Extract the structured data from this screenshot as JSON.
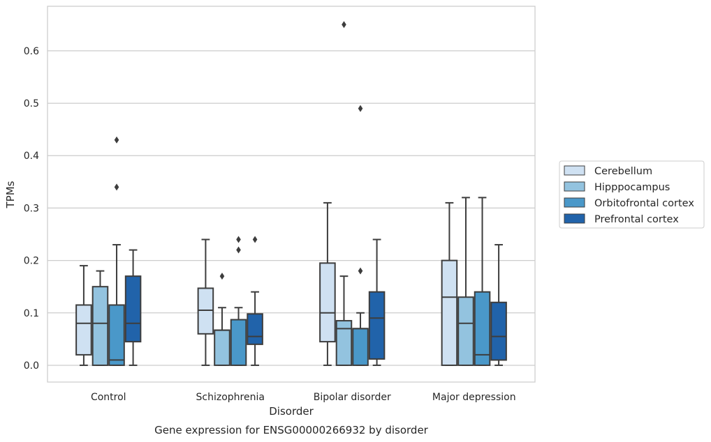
{
  "chart_data": {
    "type": "box",
    "title": "Gene expression for ENSG00000266932 by disorder",
    "xlabel": "Disorder",
    "ylabel": "TPMs",
    "ylim": [
      -0.032,
      0.685
    ],
    "yticks": [
      0.0,
      0.1,
      0.2,
      0.3,
      0.4,
      0.5,
      0.6
    ],
    "ytick_labels": [
      "0.0",
      "0.1",
      "0.2",
      "0.3",
      "0.4",
      "0.5",
      "0.6"
    ],
    "grid": "horizontal",
    "legend_position": "right",
    "categories": [
      "Control",
      "Schizophrenia",
      "Bipolar disorder",
      "Major depression"
    ],
    "series": [
      {
        "name": "Cerebellum",
        "color": "#cfe1f2",
        "boxes": [
          {
            "whislo": 0.0,
            "q1": 0.02,
            "med": 0.08,
            "q3": 0.115,
            "whishi": 0.19,
            "fliers": []
          },
          {
            "whislo": 0.0,
            "q1": 0.06,
            "med": 0.105,
            "q3": 0.147,
            "whishi": 0.24,
            "fliers": []
          },
          {
            "whislo": 0.0,
            "q1": 0.045,
            "med": 0.1,
            "q3": 0.195,
            "whishi": 0.31,
            "fliers": []
          },
          {
            "whislo": 0.0,
            "q1": 0.0,
            "med": 0.13,
            "q3": 0.2,
            "whishi": 0.31,
            "fliers": []
          }
        ]
      },
      {
        "name": "Hipppocampus",
        "color": "#93c3df",
        "boxes": [
          {
            "whislo": 0.0,
            "q1": 0.0,
            "med": 0.08,
            "q3": 0.15,
            "whishi": 0.18,
            "fliers": []
          },
          {
            "whislo": 0.0,
            "q1": 0.0,
            "med": 0.067,
            "q3": 0.067,
            "whishi": 0.11,
            "fliers": [
              0.17
            ]
          },
          {
            "whislo": 0.0,
            "q1": 0.0,
            "med": 0.07,
            "q3": 0.085,
            "whishi": 0.17,
            "fliers": [
              0.65
            ]
          },
          {
            "whislo": 0.0,
            "q1": 0.0,
            "med": 0.08,
            "q3": 0.13,
            "whishi": 0.32,
            "fliers": []
          }
        ]
      },
      {
        "name": "Orbitofrontal cortex",
        "color": "#4a98c9",
        "boxes": [
          {
            "whislo": 0.0,
            "q1": 0.0,
            "med": 0.01,
            "q3": 0.115,
            "whishi": 0.23,
            "fliers": [
              0.43,
              0.34
            ]
          },
          {
            "whislo": 0.0,
            "q1": 0.0,
            "med": 0.087,
            "q3": 0.087,
            "whishi": 0.11,
            "fliers": [
              0.24,
              0.22
            ]
          },
          {
            "whislo": 0.0,
            "q1": 0.0,
            "med": 0.07,
            "q3": 0.07,
            "whishi": 0.1,
            "fliers": [
              0.49,
              0.18
            ]
          },
          {
            "whislo": 0.0,
            "q1": 0.0,
            "med": 0.02,
            "q3": 0.14,
            "whishi": 0.32,
            "fliers": []
          }
        ]
      },
      {
        "name": "Prefrontal cortex",
        "color": "#2163aa",
        "boxes": [
          {
            "whislo": 0.0,
            "q1": 0.045,
            "med": 0.08,
            "q3": 0.17,
            "whishi": 0.22,
            "fliers": []
          },
          {
            "whislo": 0.0,
            "q1": 0.04,
            "med": 0.055,
            "q3": 0.098,
            "whishi": 0.14,
            "fliers": [
              0.24
            ]
          },
          {
            "whislo": 0.0,
            "q1": 0.012,
            "med": 0.09,
            "q3": 0.14,
            "whishi": 0.24,
            "fliers": []
          },
          {
            "whislo": 0.0,
            "q1": 0.01,
            "med": 0.055,
            "q3": 0.12,
            "whishi": 0.23,
            "fliers": []
          }
        ]
      }
    ]
  }
}
